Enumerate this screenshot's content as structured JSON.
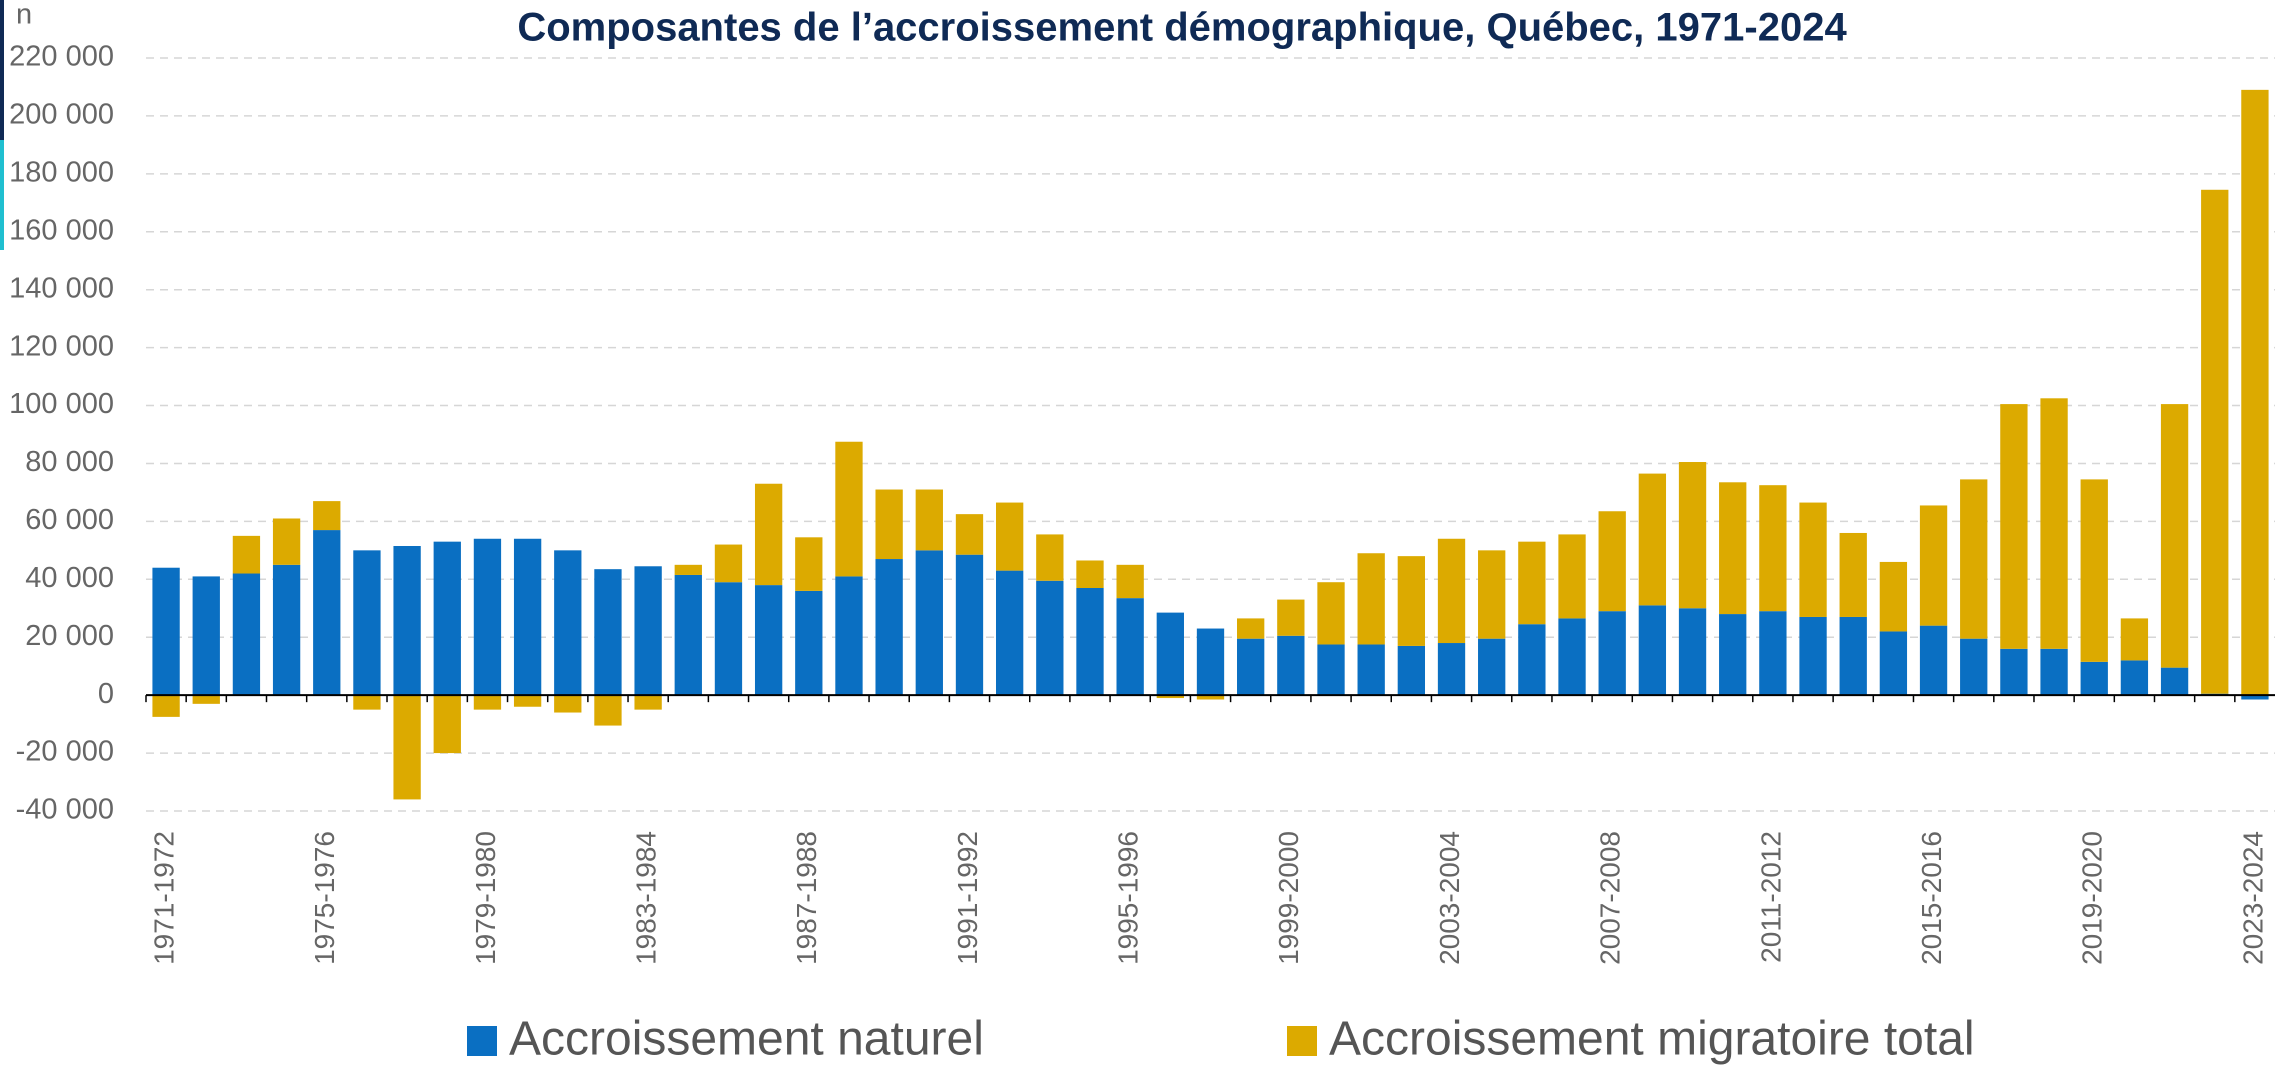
{
  "chart_data": {
    "type": "bar",
    "stacked": true,
    "title": "Composantes de l’accroissement démographique, Québec, 1971-2024",
    "y_label": "n",
    "categories": [
      "1971-1972",
      null,
      null,
      null,
      "1975-1976",
      null,
      null,
      null,
      "1979-1980",
      null,
      null,
      null,
      "1983-1984",
      null,
      null,
      null,
      "1987-1988",
      null,
      null,
      null,
      "1991-1992",
      null,
      null,
      null,
      "1995-1996",
      null,
      null,
      null,
      "1999-2000",
      null,
      null,
      null,
      "2003-2004",
      null,
      null,
      null,
      "2007-2008",
      null,
      null,
      null,
      "2011-2012",
      null,
      null,
      null,
      "2015-2016",
      null,
      null,
      null,
      "2019-2020",
      null,
      null,
      null,
      "2023-2024"
    ],
    "series": [
      {
        "name": "Accroissement naturel",
        "color": "#0a6fc2",
        "values": [
          44000,
          41000,
          42000,
          45000,
          57000,
          50000,
          51500,
          53000,
          54000,
          54000,
          50000,
          43500,
          44500,
          41500,
          39000,
          38000,
          36000,
          41000,
          47000,
          50000,
          48500,
          43000,
          39500,
          37000,
          33500,
          28500,
          23000,
          19500,
          20500,
          17500,
          17500,
          17000,
          18000,
          19500,
          24500,
          26500,
          29000,
          31000,
          30000,
          28000,
          29000,
          27000,
          27000,
          22000,
          24000,
          19500,
          16000,
          16000,
          11500,
          12000,
          9500,
          500,
          -1500
        ]
      },
      {
        "name": "Accroissement migratoire total",
        "color": "#dcaa00",
        "values": [
          -7500,
          -3000,
          13000,
          16000,
          10000,
          -5000,
          -36000,
          -20000,
          -5000,
          -4000,
          -6000,
          -10500,
          -5000,
          3500,
          13000,
          35000,
          18500,
          46500,
          24000,
          21000,
          14000,
          23500,
          16000,
          9500,
          11500,
          -1000,
          -1500,
          7000,
          12500,
          21500,
          31500,
          31000,
          36000,
          30500,
          28500,
          29000,
          34500,
          45500,
          50500,
          45500,
          43500,
          39500,
          29000,
          24000,
          41500,
          55000,
          84500,
          86500,
          63000,
          14500,
          91000,
          174000,
          209000
        ]
      }
    ],
    "ylim": [
      -40000,
      220000
    ],
    "yticks": [
      {
        "value": -40000,
        "label": "-40 000"
      },
      {
        "value": -20000,
        "label": "-20 000"
      },
      0,
      {
        "value": 20000,
        "label": "20 000"
      },
      {
        "value": 40000,
        "label": "40 000"
      },
      {
        "value": 60000,
        "label": "60 000"
      },
      {
        "value": 80000,
        "label": "80 000"
      },
      {
        "value": 100000,
        "label": "100 000"
      },
      {
        "value": 120000,
        "label": "120 000"
      },
      {
        "value": 140000,
        "label": "140 000"
      },
      {
        "value": 160000,
        "label": "160 000"
      },
      {
        "value": 180000,
        "label": "180 000"
      },
      {
        "value": 200000,
        "label": "200 000"
      },
      {
        "value": 220000,
        "label": "220 000"
      }
    ],
    "grid": true,
    "legend": "bottom"
  }
}
